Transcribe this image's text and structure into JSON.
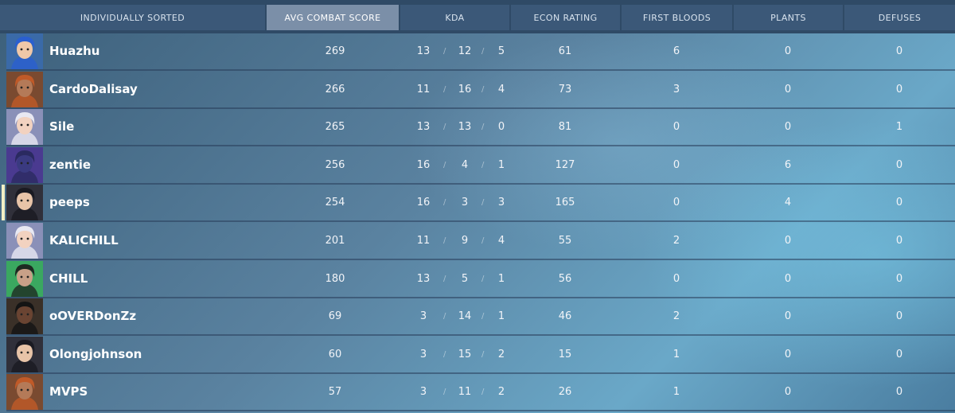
{
  "header": {
    "columns": [
      {
        "label": "INDIVIDUALLY SORTED",
        "active": false
      },
      {
        "label": "AVG COMBAT SCORE",
        "active": true
      },
      {
        "label": "KDA",
        "active": false
      },
      {
        "label": "ECON RATING",
        "active": false
      },
      {
        "label": "FIRST BLOODS",
        "active": false
      },
      {
        "label": "PLANTS",
        "active": false
      },
      {
        "label": "DEFUSES",
        "active": false
      }
    ]
  },
  "kda_separator": "/",
  "colors": {
    "team_a": "#4a9a9a",
    "team_b": "#a04a68",
    "header_bg": "#2f4a66",
    "active_header": "#7b8fa8"
  },
  "players": [
    {
      "name": "Huazhu",
      "team": "team_a",
      "agent_icon": "agent-blue-hair-icon",
      "acs": "269",
      "k": "13",
      "d": "12",
      "a": "5",
      "econ": "61",
      "first_bloods": "6",
      "plants": "0",
      "defuses": "0",
      "selected": false
    },
    {
      "name": "CardoDalisay",
      "team": "team_b",
      "agent_icon": "agent-bearded-beret-icon",
      "acs": "266",
      "k": "11",
      "d": "16",
      "a": "4",
      "econ": "73",
      "first_bloods": "3",
      "plants": "0",
      "defuses": "0",
      "selected": false
    },
    {
      "name": "Sile",
      "team": "team_b",
      "agent_icon": "agent-white-hair-icon",
      "acs": "265",
      "k": "13",
      "d": "13",
      "a": "0",
      "econ": "81",
      "first_bloods": "0",
      "plants": "0",
      "defuses": "1",
      "selected": false
    },
    {
      "name": "zentie",
      "team": "team_a",
      "agent_icon": "agent-hooded-icon",
      "acs": "256",
      "k": "16",
      "d": "4",
      "a": "1",
      "econ": "127",
      "first_bloods": "0",
      "plants": "6",
      "defuses": "0",
      "selected": false
    },
    {
      "name": "peeps",
      "team": "team_a",
      "agent_icon": "agent-dark-hair-icon",
      "acs": "254",
      "k": "16",
      "d": "3",
      "a": "3",
      "econ": "165",
      "first_bloods": "0",
      "plants": "4",
      "defuses": "0",
      "selected": true
    },
    {
      "name": "KALICHILL",
      "team": "team_a",
      "agent_icon": "agent-white-hair-icon",
      "acs": "201",
      "k": "11",
      "d": "9",
      "a": "4",
      "econ": "55",
      "first_bloods": "2",
      "plants": "0",
      "defuses": "0",
      "selected": false
    },
    {
      "name": "CHILL",
      "team": "team_a",
      "agent_icon": "agent-green-goggles-icon",
      "acs": "180",
      "k": "13",
      "d": "5",
      "a": "1",
      "econ": "56",
      "first_bloods": "0",
      "plants": "0",
      "defuses": "0",
      "selected": false
    },
    {
      "name": "oOVERDonZz",
      "team": "team_b",
      "agent_icon": "agent-dark-skin-icon",
      "acs": "69",
      "k": "3",
      "d": "14",
      "a": "1",
      "econ": "46",
      "first_bloods": "2",
      "plants": "0",
      "defuses": "0",
      "selected": false
    },
    {
      "name": "Olongjohnson",
      "team": "team_b",
      "agent_icon": "agent-dark-hair-icon",
      "acs": "60",
      "k": "3",
      "d": "15",
      "a": "2",
      "econ": "15",
      "first_bloods": "1",
      "plants": "0",
      "defuses": "0",
      "selected": false
    },
    {
      "name": "MVPS",
      "team": "team_b",
      "agent_icon": "agent-bearded-beret-icon",
      "acs": "57",
      "k": "3",
      "d": "11",
      "a": "2",
      "econ": "26",
      "first_bloods": "1",
      "plants": "0",
      "defuses": "0",
      "selected": false
    }
  ]
}
